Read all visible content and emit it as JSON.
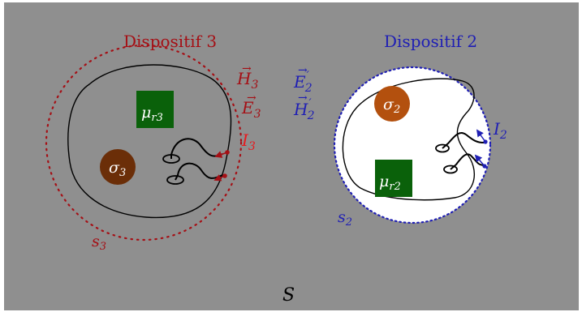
{
  "colors": {
    "background": "#8f8f8f",
    "device3": "#a50f15",
    "device2": "#1f1fb4",
    "current3": "#e8191e",
    "sigma3_fill": "#6b2e08",
    "sigma2_fill": "#b3500e",
    "mu_fill": "#0a610a",
    "white": "#ffffff",
    "black": "#000000"
  },
  "labels": {
    "device3_title": "Dispositif 3",
    "device2_title": "Dispositif 2",
    "H3": "H",
    "H3_sub": "3",
    "E3": "E",
    "E3_sub": "3",
    "I3": "I",
    "I3_sub": "3",
    "E2p": "E",
    "E2p_sub": "2",
    "H2p": "H",
    "H2p_sub": "2",
    "I2": "I",
    "I2_sub": "2",
    "s3": "s",
    "s3_sub": "3",
    "s2": "s",
    "s2_sub": "2",
    "S": "S",
    "sigma3": "σ",
    "sigma3_sub": "3",
    "sigma2": "σ",
    "sigma2_sub": "2",
    "mu_r3": "μ",
    "mu_r3_sub": "r3",
    "mu_r2": "μ",
    "mu_r2_sub": "r2"
  }
}
